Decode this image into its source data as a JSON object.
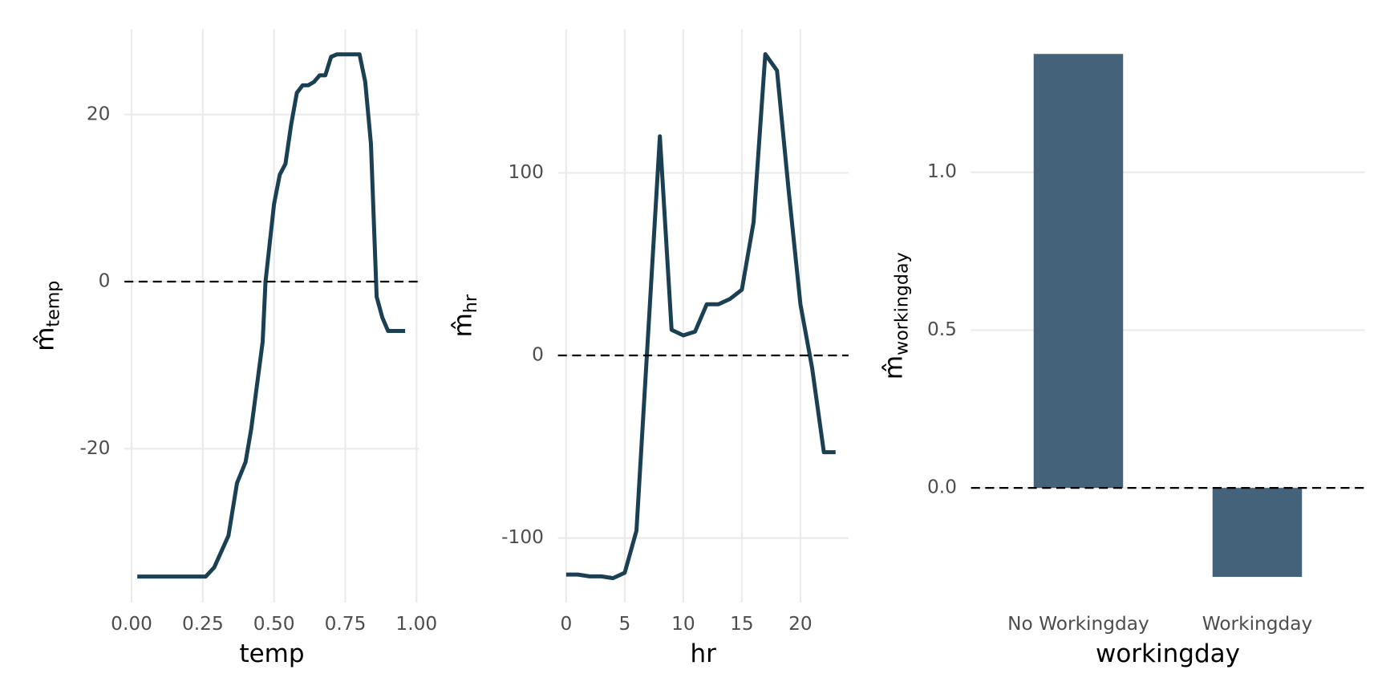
{
  "chart_data": [
    {
      "type": "line",
      "xlabel": "temp",
      "ylabel": "m̂",
      "ylabel_subscript": "temp",
      "color": "#1b3f53",
      "x": [
        0.02,
        0.26,
        0.29,
        0.34,
        0.37,
        0.4,
        0.42,
        0.46,
        0.47,
        0.5,
        0.52,
        0.54,
        0.56,
        0.58,
        0.6,
        0.62,
        0.64,
        0.66,
        0.68,
        0.7,
        0.72,
        0.8,
        0.82,
        0.84,
        0.86,
        0.88,
        0.9,
        0.96
      ],
      "values": [
        -35.3,
        -35.3,
        -34.2,
        -30.4,
        -24.1,
        -21.6,
        -17.6,
        -7.2,
        0,
        9.3,
        12.8,
        14.1,
        18.8,
        22.6,
        23.5,
        23.5,
        23.9,
        24.7,
        24.7,
        26.9,
        27.2,
        27.2,
        23.9,
        16.5,
        -1.8,
        -4.3,
        -5.9,
        -5.9
      ],
      "xlim": [
        -0.025,
        1.01
      ],
      "ylim": [
        -38.4,
        30.2
      ],
      "xticks": [
        {
          "value": 0,
          "label": "0.00"
        },
        {
          "value": 0.25,
          "label": "0.25"
        },
        {
          "value": 0.5,
          "label": "0.50"
        },
        {
          "value": 0.75,
          "label": "0.75"
        },
        {
          "value": 1,
          "label": "1.00"
        }
      ],
      "yticks": [
        -20,
        0,
        20
      ],
      "hline": 0,
      "grid": true
    },
    {
      "type": "line",
      "xlabel": "hr",
      "ylabel": "m̂",
      "ylabel_subscript": "hr",
      "color": "#1b3f53",
      "x": [
        0,
        1,
        2,
        3,
        4,
        5,
        6,
        7,
        8,
        9,
        10,
        11,
        12,
        13,
        14,
        15,
        16,
        17,
        18,
        19,
        20,
        21,
        22,
        23
      ],
      "values": [
        -120,
        -120,
        -121,
        -121,
        -122,
        -119,
        -96,
        12,
        120,
        14,
        11,
        13,
        28,
        28,
        31,
        36,
        73,
        165,
        156,
        90,
        28,
        -7,
        -53,
        -53
      ],
      "xlim": [
        -0.7,
        24.1
      ],
      "ylim": [
        -135.3,
        178.6
      ],
      "xticks": [
        0,
        5,
        10,
        15,
        20
      ],
      "yticks": [
        -100,
        0,
        100
      ],
      "hline": 0,
      "grid": true
    },
    {
      "type": "bar",
      "xlabel": "workingday",
      "ylabel": "m̂",
      "ylabel_subscript": "workingday",
      "color": "#44637a",
      "categories": [
        "No Workingday",
        "Workingday"
      ],
      "values": [
        1.375,
        -0.282
      ],
      "ylim": [
        -0.363,
        1.453
      ],
      "yticks": [
        {
          "value": 0,
          "label": "0.0"
        },
        {
          "value": 0.5,
          "label": "0.5"
        },
        {
          "value": 1,
          "label": "1.0"
        }
      ],
      "hline": 0,
      "grid": true
    }
  ]
}
